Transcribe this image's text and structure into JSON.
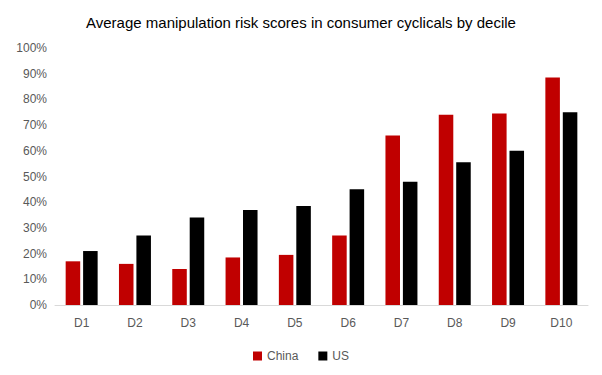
{
  "chart_data": {
    "type": "bar",
    "title": "Average manipulation risk scores in consumer cyclicals by decile",
    "categories": [
      "D1",
      "D2",
      "D3",
      "D4",
      "D5",
      "D6",
      "D7",
      "D8",
      "D9",
      "D10"
    ],
    "series": [
      {
        "name": "China",
        "color": "#c00000",
        "values": [
          17,
          16,
          14,
          18.5,
          19.5,
          27,
          66,
          74,
          74.5,
          88.5
        ]
      },
      {
        "name": "US",
        "color": "#000000",
        "values": [
          21,
          27,
          34,
          37,
          38.5,
          45,
          48,
          55.5,
          60,
          75
        ]
      }
    ],
    "ylim": [
      0,
      100
    ],
    "yticks": [
      {
        "value": 0,
        "label": "0%"
      },
      {
        "value": 10,
        "label": "10%"
      },
      {
        "value": 20,
        "label": "20%"
      },
      {
        "value": 30,
        "label": "30%"
      },
      {
        "value": 40,
        "label": "40%"
      },
      {
        "value": 50,
        "label": "50%"
      },
      {
        "value": 60,
        "label": "60%"
      },
      {
        "value": 70,
        "label": "70%"
      },
      {
        "value": 80,
        "label": "80%"
      },
      {
        "value": 90,
        "label": "90%"
      },
      {
        "value": 100,
        "label": "100%"
      }
    ],
    "grid": false,
    "legend": "bottom"
  }
}
